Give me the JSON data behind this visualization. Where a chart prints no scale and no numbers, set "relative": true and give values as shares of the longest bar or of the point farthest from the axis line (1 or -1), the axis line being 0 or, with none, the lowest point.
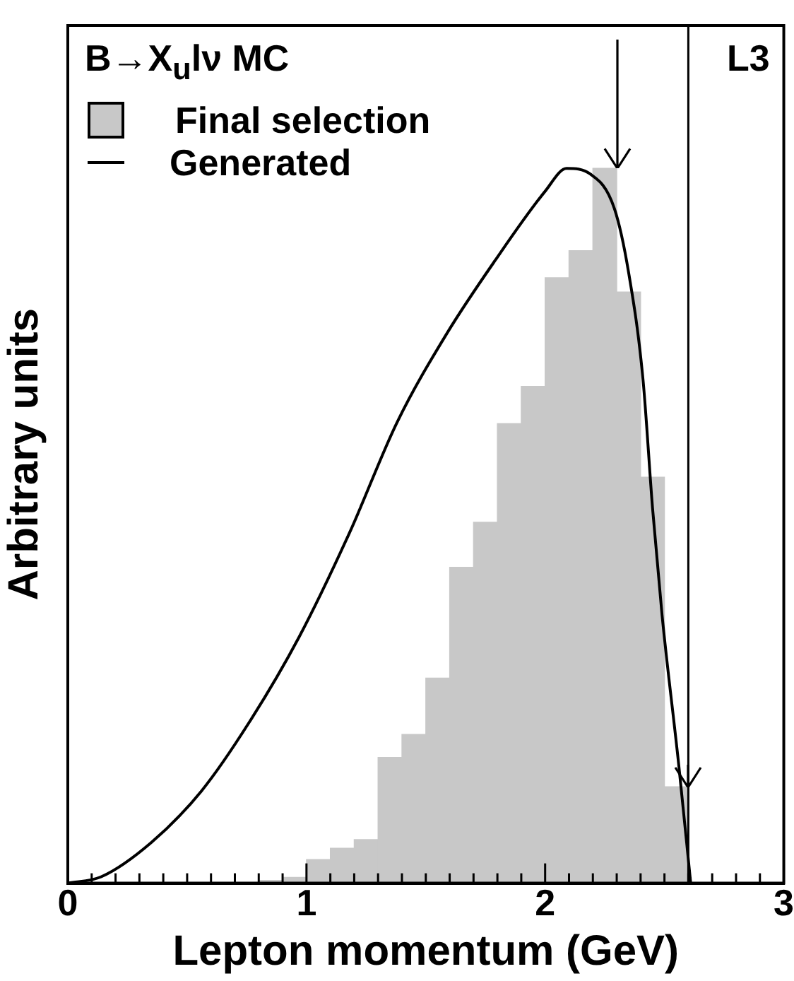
{
  "chart_data": {
    "type": "histogram",
    "title": "B→X$_{u}$lν MC",
    "xlabel": "Lepton momentum (GeV)",
    "ylabel": "Arbitrary units",
    "relative": true,
    "bins": [
      0.8,
      0.9,
      1.0,
      1.1,
      1.2,
      1.3,
      1.4,
      1.5,
      1.6,
      1.7,
      1.8,
      1.9,
      2.0,
      2.1,
      2.2,
      2.3,
      2.4,
      2.5,
      2.6
    ],
    "series": [
      {
        "name": "Final selection",
        "color": "#c8c8c8",
        "values": [
          0.004,
          0.008,
          0.033,
          0.049,
          0.061,
          0.176,
          0.208,
          0.287,
          0.442,
          0.505,
          0.643,
          0.695,
          0.847,
          0.885,
          1.0,
          0.827,
          0.568,
          0.135
        ]
      },
      {
        "type": "line",
        "name": "Generated",
        "color": "#000000",
        "x": [
          0,
          0.14,
          0.35,
          0.56,
          0.76,
          0.97,
          1.18,
          1.38,
          1.59,
          1.79,
          2.0,
          2.09,
          2.19,
          2.29,
          2.35,
          2.41,
          2.45,
          2.49,
          2.56,
          2.61
        ],
        "values": [
          0,
          0.009,
          0.057,
          0.129,
          0.225,
          0.345,
          0.49,
          0.645,
          0.77,
          0.871,
          0.968,
          1.0,
          0.992,
          0.944,
          0.854,
          0.705,
          0.525,
          0.375,
          0.165,
          0
        ]
      }
    ],
    "xlim": [
      0,
      3
    ],
    "xticks": [
      0,
      {
        "value": 0.1,
        "label": null
      },
      {
        "value": 0.2,
        "label": null
      },
      {
        "value": 0.3,
        "label": null
      },
      {
        "value": 0.4,
        "label": null
      },
      {
        "value": 0.5,
        "label": null
      },
      {
        "value": 0.6,
        "label": null
      },
      {
        "value": 0.7,
        "label": null
      },
      {
        "value": 0.8,
        "label": null
      },
      {
        "value": 0.9,
        "label": null
      },
      1,
      {
        "value": 1.1,
        "label": null
      },
      {
        "value": 1.2,
        "label": null
      },
      {
        "value": 1.3,
        "label": null
      },
      {
        "value": 1.4,
        "label": null
      },
      {
        "value": 1.5,
        "label": null
      },
      {
        "value": 1.6,
        "label": null
      },
      {
        "value": 1.7,
        "label": null
      },
      {
        "value": 1.8,
        "label": null
      },
      {
        "value": 1.9,
        "label": null
      },
      2,
      {
        "value": 2.1,
        "label": null
      },
      {
        "value": 2.2,
        "label": null
      },
      {
        "value": 2.3,
        "label": null
      },
      {
        "value": 2.4,
        "label": null
      },
      {
        "value": 2.5,
        "label": null
      },
      {
        "value": 2.6,
        "label": null
      },
      {
        "value": 2.7,
        "label": null
      },
      {
        "value": 2.8,
        "label": null
      },
      {
        "value": 2.9,
        "label": null
      },
      3
    ],
    "ref_lines": [
      {
        "axis": "x",
        "value": 2.6,
        "color": "#000000"
      }
    ],
    "annotations": [
      "L3"
    ],
    "legend": "top left",
    "marker": "none",
    "line_style": "solid"
  }
}
